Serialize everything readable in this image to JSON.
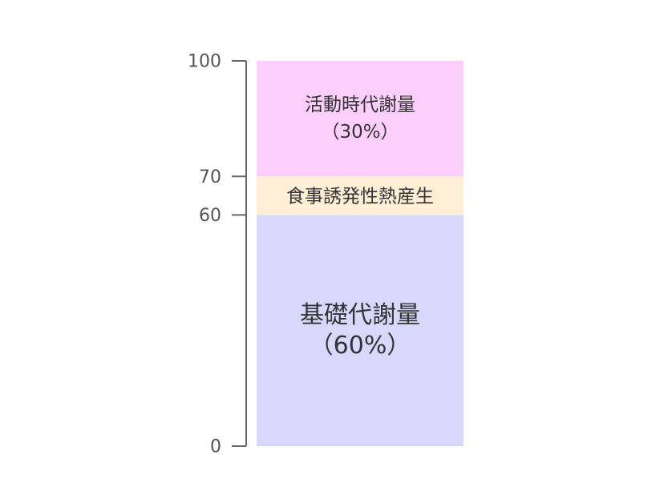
{
  "chart_data": {
    "type": "bar",
    "stacked": true,
    "title": "",
    "xlabel": "",
    "ylabel": "",
    "ylim": [
      0,
      100
    ],
    "grid": false,
    "legend": "none",
    "ticks": [
      {
        "value": 0,
        "label": "0"
      },
      {
        "value": 60,
        "label": "60"
      },
      {
        "value": 70,
        "label": "70"
      },
      {
        "value": 100,
        "label": "100"
      }
    ],
    "segments": [
      {
        "key": "basal",
        "start": 0,
        "end": 60,
        "value": 60,
        "label_line1": "基礎代謝量",
        "label_line2": "（60%）",
        "color": "#d8d8fc"
      },
      {
        "key": "diet",
        "start": 60,
        "end": 70,
        "value": 10,
        "label_line1": "食事誘発性熱産生",
        "label_line2": "",
        "color": "#fdeed5"
      },
      {
        "key": "activity",
        "start": 70,
        "end": 100,
        "value": 30,
        "label_line1": "活動時代謝量",
        "label_line2": "（30%）",
        "color": "#fbcefc"
      }
    ],
    "axis_color": "#666666",
    "text_color": "#333333"
  }
}
